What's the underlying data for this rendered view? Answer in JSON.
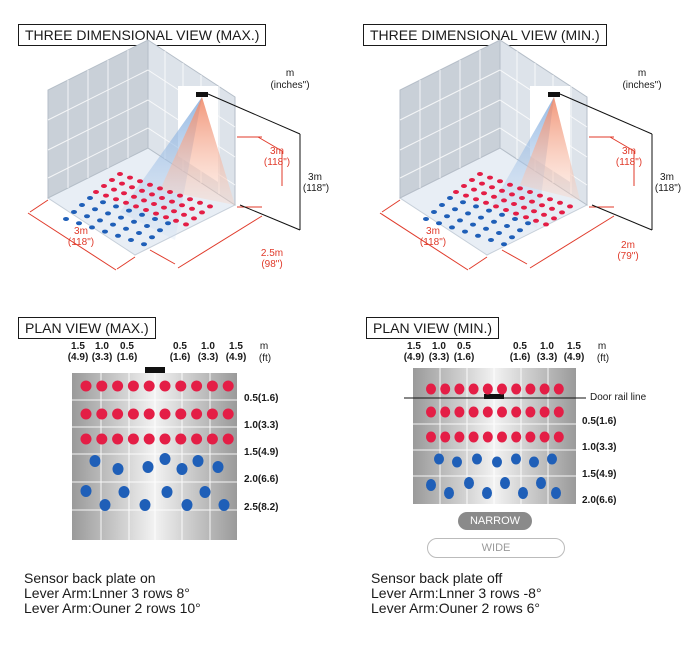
{
  "max": {
    "title_3d": "THREE DIMENSIONAL VIEW (MAX.)",
    "unit_top": "m",
    "unit_sub": "(inches\")",
    "height_wall": "3m",
    "height_wall_in": "(118\")",
    "height_total": "3m",
    "height_total_in": "(118\")",
    "width": "3m",
    "width_in": "(118\")",
    "depth": "2.5m",
    "depth_in": "(98\")",
    "title_plan": "PLAN VIEW (MAX.)",
    "col_top": [
      "1.5",
      "1.0",
      "0.5",
      "0.5",
      "1.0",
      "1.5"
    ],
    "col_bot": [
      "(4.9)",
      "(3.3)",
      "(1.6)",
      "(1.6)",
      "(3.3)",
      "(4.9)"
    ],
    "unit_m": "m",
    "unit_ft": "(ft)",
    "rows": [
      "0.5(1.6)",
      "1.0(3.3)",
      "1.5(4.9)",
      "2.0(6.6)",
      "2.5(8.2)"
    ],
    "caption": [
      "Sensor back plate on",
      "Lever Arm:Lnner 3 rows 8°",
      "Lever Arm:Ouner 2 rows 10°"
    ]
  },
  "min": {
    "title_3d": "THREE DIMENSIONAL VIEW (MIN.)",
    "unit_top": "m",
    "unit_sub": "(inches\")",
    "height_wall": "3m",
    "height_wall_in": "(118\")",
    "height_total": "3m",
    "height_total_in": "(118\")",
    "width": "3m",
    "width_in": "(118\")",
    "depth": "2m",
    "depth_in": "(79\")",
    "title_plan": "PLAN VIEW (MIN.)",
    "col_top": [
      "1.5",
      "1.0",
      "0.5",
      "0.5",
      "1.0",
      "1.5"
    ],
    "col_bot": [
      "(4.9)",
      "(3.3)",
      "(1.6)",
      "(1.6)",
      "(3.3)",
      "(4.9)"
    ],
    "unit_m": "m",
    "unit_ft": "(ft)",
    "door_rail": "Door rail line",
    "rows": [
      "0.5(1.6)",
      "1.0(3.3)",
      "1.5(4.9)",
      "2.0(6.6)"
    ],
    "narrow": "NARROW",
    "wide": "WIDE",
    "caption": [
      "Sensor back plate off",
      "Lever Arm:Lnner 3 rows -8°",
      "Lever Arm:Ouner 2 rows 6°"
    ]
  },
  "colors": {
    "red_dot": "#e41e46",
    "blue_dot": "#1f5fb8",
    "dim_red": "#e03a2a"
  }
}
